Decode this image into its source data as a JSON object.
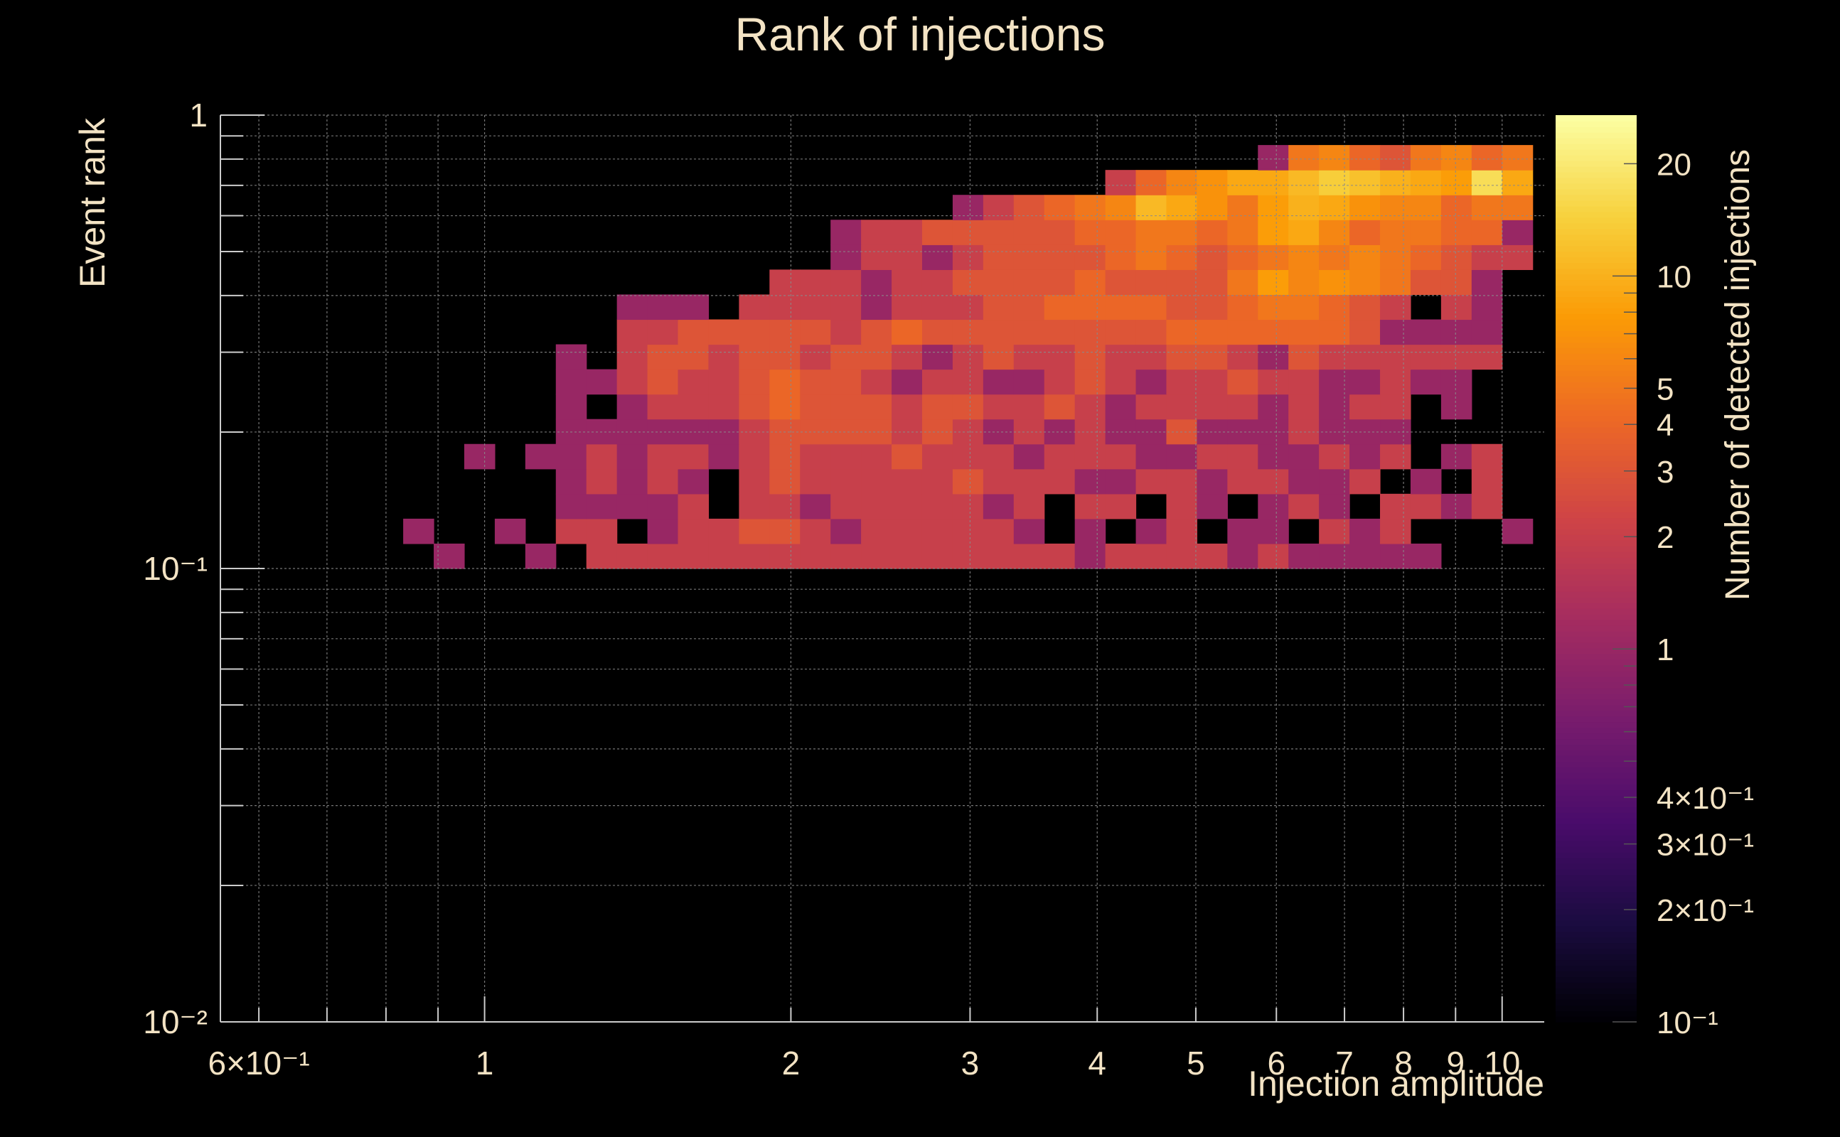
{
  "chart_data": {
    "type": "heatmap",
    "title": "Rank of injections",
    "xlabel": "Injection amplitude",
    "ylabel": "Event rank",
    "zlabel": "Number of detected injections",
    "x_scale": "log",
    "y_scale": "log",
    "z_scale": "log",
    "xlim": [
      0.55,
      11.0
    ],
    "ylim": [
      0.01,
      1
    ],
    "zlim": [
      0.1,
      27
    ],
    "grid": true,
    "x_ticks": [
      {
        "value": 0.6,
        "label": "6×10⁻¹"
      },
      {
        "value": 1,
        "label": "1"
      },
      {
        "value": 2,
        "label": "2"
      },
      {
        "value": 3,
        "label": "3"
      },
      {
        "value": 4,
        "label": "4"
      },
      {
        "value": 5,
        "label": "5"
      },
      {
        "value": 6,
        "label": "6"
      },
      {
        "value": 7,
        "label": "7"
      },
      {
        "value": 8,
        "label": "8"
      },
      {
        "value": 9,
        "label": "9"
      },
      {
        "value": 10,
        "label": "10"
      }
    ],
    "y_ticks": [
      {
        "value": 1,
        "label": "1"
      },
      {
        "value": 0.1,
        "label": "10⁻¹"
      },
      {
        "value": 0.01,
        "label": "10⁻²"
      }
    ],
    "z_ticks": [
      {
        "value": 20,
        "label": "20"
      },
      {
        "value": 10,
        "label": "10"
      },
      {
        "value": 5,
        "label": "5"
      },
      {
        "value": 4,
        "label": "4"
      },
      {
        "value": 3,
        "label": "3"
      },
      {
        "value": 2,
        "label": "2"
      },
      {
        "value": 1,
        "label": "1"
      },
      {
        "value": 0.4,
        "label": "4×10⁻¹"
      },
      {
        "value": 0.3,
        "label": "3×10⁻¹"
      },
      {
        "value": 0.2,
        "label": "2×10⁻¹"
      },
      {
        "value": 0.1,
        "label": "10⁻¹"
      }
    ],
    "colors": {
      "background": "#000000",
      "text": "#f3e3c4",
      "grid": "#8a8a8a",
      "axis": "#cccccc",
      "colormap": [
        "#000004",
        "#1b0c41",
        "#4a0c6b",
        "#781c6d",
        "#a52c60",
        "#cf4446",
        "#ed6925",
        "#fb9b06",
        "#f7d13d",
        "#fcffa4"
      ]
    },
    "bins": {
      "x_log_min": -0.26,
      "x_log_max": 1.03,
      "n_x": 43,
      "y_log_min": -1.0,
      "y_log_max": -0.066,
      "n_y": 17,
      "counts": [
        [
          0,
          0,
          0,
          0,
          0,
          0,
          0,
          1,
          0,
          0,
          1,
          0,
          2,
          2,
          2,
          2,
          2,
          2,
          2,
          2,
          2,
          2,
          2,
          2,
          2,
          2,
          2,
          2,
          1,
          2,
          2,
          2,
          2,
          1,
          2,
          1,
          1,
          1,
          1,
          1,
          0,
          0,
          0
        ],
        [
          0,
          0,
          0,
          0,
          0,
          0,
          1,
          0,
          0,
          1,
          0,
          2,
          2,
          0,
          1,
          2,
          2,
          3,
          3,
          2,
          1,
          2,
          2,
          2,
          2,
          2,
          1,
          0,
          1,
          0,
          1,
          2,
          0,
          1,
          1,
          0,
          2,
          1,
          2,
          0,
          0,
          0,
          1
        ],
        [
          0,
          0,
          0,
          0,
          0,
          0,
          0,
          0,
          0,
          0,
          0,
          1,
          1,
          1,
          1,
          2,
          0,
          2,
          2,
          1,
          2,
          2,
          2,
          2,
          2,
          1,
          2,
          0,
          2,
          2,
          0,
          2,
          1,
          0,
          1,
          2,
          1,
          0,
          2,
          2,
          1,
          2,
          0
        ],
        [
          0,
          0,
          0,
          0,
          0,
          0,
          0,
          0,
          0,
          0,
          0,
          1,
          2,
          1,
          2,
          1,
          0,
          2,
          3,
          2,
          2,
          2,
          2,
          2,
          3,
          2,
          2,
          2,
          1,
          1,
          2,
          2,
          1,
          2,
          2,
          1,
          1,
          2,
          0,
          1,
          0,
          2,
          0
        ],
        [
          0,
          0,
          0,
          0,
          0,
          0,
          0,
          0,
          1,
          0,
          1,
          1,
          2,
          1,
          2,
          2,
          1,
          2,
          3,
          2,
          2,
          2,
          3,
          2,
          2,
          2,
          1,
          2,
          2,
          2,
          1,
          1,
          2,
          2,
          1,
          1,
          2,
          1,
          2,
          0,
          1,
          2,
          0
        ],
        [
          0,
          0,
          0,
          0,
          0,
          0,
          0,
          0,
          0,
          0,
          0,
          1,
          1,
          1,
          1,
          1,
          1,
          2,
          3,
          3,
          3,
          3,
          2,
          3,
          2,
          1,
          2,
          1,
          2,
          1,
          1,
          3,
          1,
          1,
          1,
          2,
          1,
          1,
          1,
          0,
          0,
          0,
          0
        ],
        [
          0,
          0,
          0,
          0,
          0,
          0,
          0,
          0,
          0,
          0,
          0,
          1,
          0,
          1,
          2,
          2,
          2,
          3,
          4,
          3,
          3,
          3,
          2,
          3,
          3,
          2,
          2,
          3,
          2,
          1,
          2,
          2,
          2,
          2,
          1,
          2,
          1,
          2,
          2,
          0,
          1,
          0,
          0
        ],
        [
          0,
          0,
          0,
          0,
          0,
          0,
          0,
          0,
          0,
          0,
          0,
          1,
          1,
          2,
          3,
          2,
          2,
          3,
          4,
          3,
          3,
          2,
          1,
          2,
          2,
          1,
          1,
          2,
          3,
          2,
          1,
          2,
          2,
          3,
          2,
          2,
          1,
          1,
          2,
          1,
          1,
          0,
          0
        ],
        [
          0,
          0,
          0,
          0,
          0,
          0,
          0,
          0,
          0,
          0,
          0,
          1,
          0,
          2,
          3,
          3,
          2,
          3,
          3,
          2,
          3,
          3,
          2,
          1,
          2,
          3,
          2,
          2,
          3,
          2,
          2,
          3,
          3,
          2,
          1,
          3,
          2,
          2,
          2,
          2,
          2,
          2,
          0
        ],
        [
          0,
          0,
          0,
          0,
          0,
          0,
          0,
          0,
          0,
          0,
          0,
          0,
          0,
          2,
          2,
          3,
          3,
          3,
          3,
          3,
          2,
          3,
          4,
          3,
          3,
          3,
          3,
          3,
          3,
          3,
          3,
          4,
          4,
          4,
          4,
          4,
          4,
          3,
          1,
          1,
          1,
          1,
          0
        ],
        [
          0,
          0,
          0,
          0,
          0,
          0,
          0,
          0,
          0,
          0,
          0,
          0,
          0,
          1,
          1,
          1,
          0,
          2,
          2,
          2,
          2,
          1,
          2,
          2,
          2,
          3,
          3,
          4,
          4,
          4,
          4,
          3,
          3,
          4,
          5,
          5,
          4,
          3,
          2,
          0,
          2,
          1,
          0
        ],
        [
          0,
          0,
          0,
          0,
          0,
          0,
          0,
          0,
          0,
          0,
          0,
          0,
          0,
          0,
          0,
          0,
          0,
          0,
          2,
          2,
          2,
          1,
          2,
          2,
          3,
          3,
          3,
          3,
          4,
          3,
          3,
          3,
          3,
          5,
          8,
          6,
          7,
          6,
          5,
          3,
          3,
          1,
          0
        ],
        [
          0,
          0,
          0,
          0,
          0,
          0,
          0,
          0,
          0,
          0,
          0,
          0,
          0,
          0,
          0,
          0,
          0,
          0,
          0,
          0,
          1,
          2,
          2,
          1,
          2,
          3,
          3,
          3,
          3,
          4,
          5,
          4,
          3,
          4,
          5,
          6,
          5,
          6,
          5,
          4,
          3,
          2,
          2
        ],
        [
          0,
          0,
          0,
          0,
          0,
          0,
          0,
          0,
          0,
          0,
          0,
          0,
          0,
          0,
          0,
          0,
          0,
          0,
          0,
          0,
          1,
          2,
          2,
          3,
          3,
          3,
          3,
          3,
          4,
          4,
          5,
          5,
          4,
          5,
          8,
          9,
          6,
          4,
          5,
          5,
          4,
          4,
          1
        ],
        [
          0,
          0,
          0,
          0,
          0,
          0,
          0,
          0,
          0,
          0,
          0,
          0,
          0,
          0,
          0,
          0,
          0,
          0,
          0,
          0,
          0,
          0,
          0,
          0,
          1,
          2,
          3,
          4,
          5,
          6,
          11,
          9,
          7,
          5,
          8,
          10,
          9,
          7,
          6,
          6,
          4,
          5,
          5
        ],
        [
          0,
          0,
          0,
          0,
          0,
          0,
          0,
          0,
          0,
          0,
          0,
          0,
          0,
          0,
          0,
          0,
          0,
          0,
          0,
          0,
          0,
          0,
          0,
          0,
          0,
          0,
          0,
          0,
          0,
          2,
          4,
          6,
          7,
          9,
          9,
          11,
          14,
          12,
          10,
          9,
          8,
          17,
          9
        ],
        [
          0,
          0,
          0,
          0,
          0,
          0,
          0,
          0,
          0,
          0,
          0,
          0,
          0,
          0,
          0,
          0,
          0,
          0,
          0,
          0,
          0,
          0,
          0,
          0,
          0,
          0,
          0,
          0,
          0,
          0,
          0,
          0,
          0,
          0,
          1,
          5,
          6,
          4,
          3,
          5,
          6,
          4,
          5
        ]
      ]
    }
  }
}
